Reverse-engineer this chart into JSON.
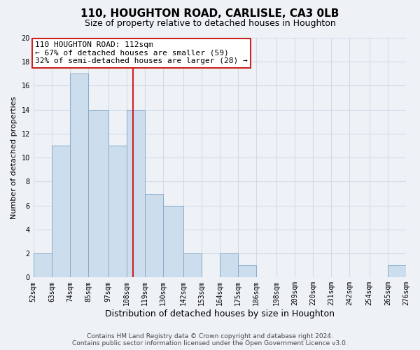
{
  "title": "110, HOUGHTON ROAD, CARLISLE, CA3 0LB",
  "subtitle": "Size of property relative to detached houses in Houghton",
  "xlabel": "Distribution of detached houses by size in Houghton",
  "ylabel": "Number of detached properties",
  "bin_edges": [
    52,
    63,
    74,
    85,
    97,
    108,
    119,
    130,
    142,
    153,
    164,
    175,
    186,
    198,
    209,
    220,
    231,
    242,
    254,
    265,
    276
  ],
  "bin_labels": [
    "52sqm",
    "63sqm",
    "74sqm",
    "85sqm",
    "97sqm",
    "108sqm",
    "119sqm",
    "130sqm",
    "142sqm",
    "153sqm",
    "164sqm",
    "175sqm",
    "186sqm",
    "198sqm",
    "209sqm",
    "220sqm",
    "231sqm",
    "242sqm",
    "254sqm",
    "265sqm",
    "276sqm"
  ],
  "counts": [
    2,
    11,
    17,
    14,
    11,
    14,
    7,
    6,
    2,
    0,
    2,
    1,
    0,
    0,
    0,
    0,
    0,
    0,
    0,
    1
  ],
  "bar_color": "#ccdded",
  "bar_edge_color": "#88aac8",
  "property_line_x": 112,
  "ylim": [
    0,
    20
  ],
  "yticks": [
    0,
    2,
    4,
    6,
    8,
    10,
    12,
    14,
    16,
    18,
    20
  ],
  "annotation_title": "110 HOUGHTON ROAD: 112sqm",
  "annotation_line1": "← 67% of detached houses are smaller (59)",
  "annotation_line2": "32% of semi-detached houses are larger (28) →",
  "annotation_box_facecolor": "#ffffff",
  "annotation_box_edgecolor": "#cc2222",
  "vline_color": "#cc2222",
  "grid_color": "#d0dce8",
  "footer_line1": "Contains HM Land Registry data © Crown copyright and database right 2024.",
  "footer_line2": "Contains public sector information licensed under the Open Government Licence v3.0.",
  "background_color": "#eef2f7",
  "title_fontsize": 11,
  "subtitle_fontsize": 9,
  "ylabel_fontsize": 8,
  "xlabel_fontsize": 9,
  "tick_fontsize": 7,
  "footer_fontsize": 6.5,
  "ann_fontsize": 8
}
